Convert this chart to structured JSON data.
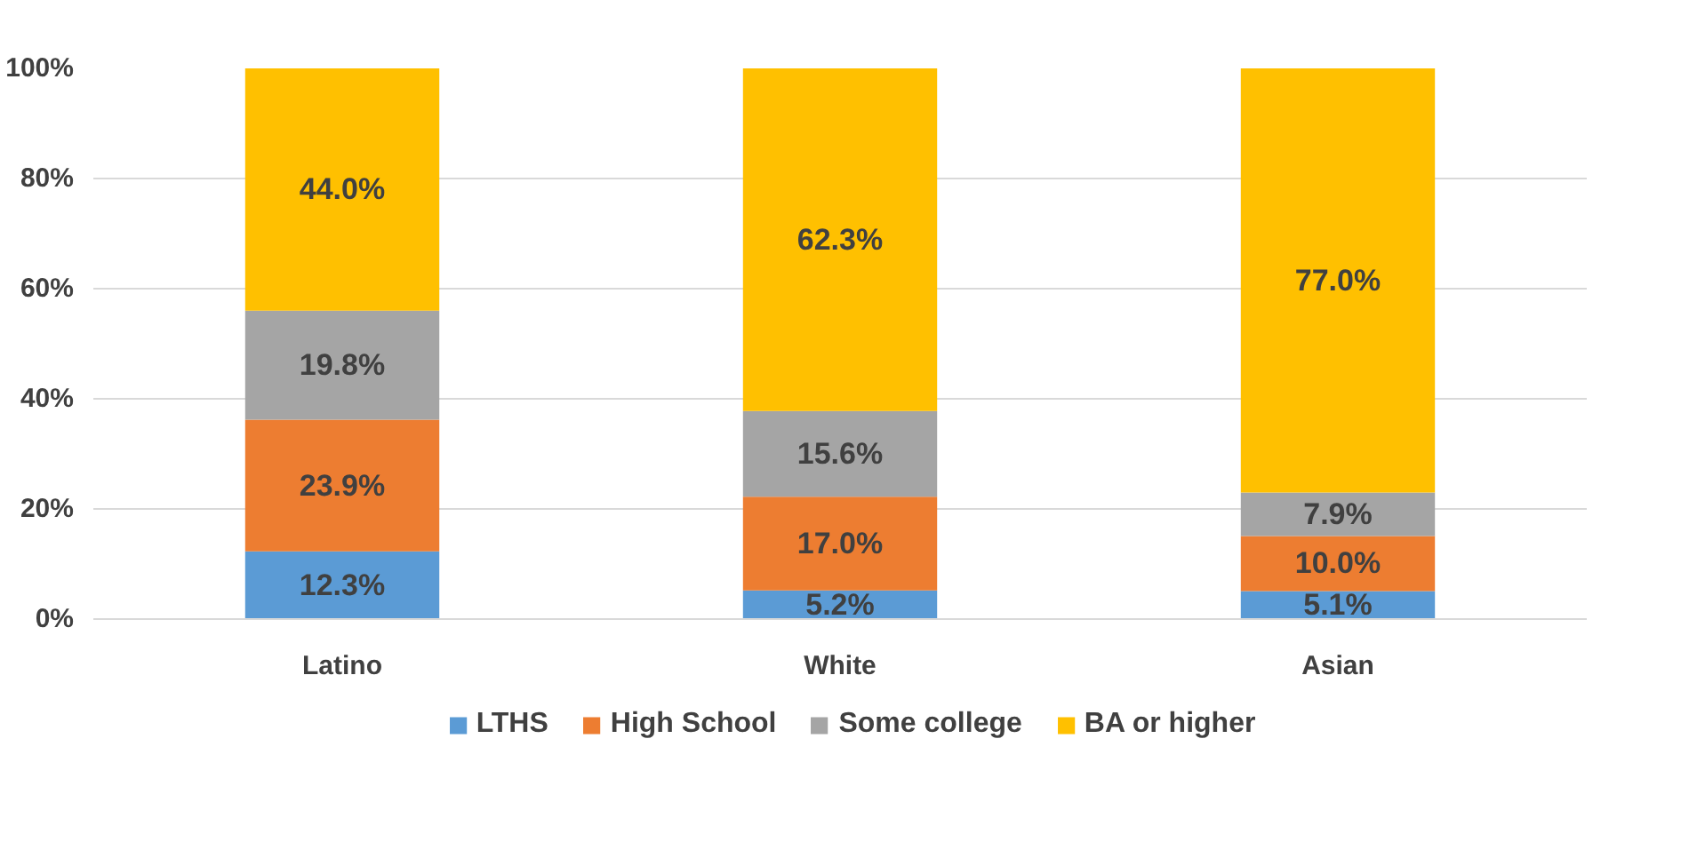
{
  "chart_data": {
    "type": "bar",
    "stacked": true,
    "categories": [
      "Latino",
      "White",
      "Asian"
    ],
    "series": [
      {
        "name": "LTHS",
        "color": "#5b9bd5",
        "values": [
          12.3,
          5.2,
          5.1
        ],
        "value_labels": [
          "12.3%",
          "5.2%",
          "5.1%"
        ]
      },
      {
        "name": "High School",
        "color": "#ed7d31",
        "values": [
          23.9,
          17.0,
          10.0
        ],
        "value_labels": [
          "23.9%",
          "17.0%",
          "10.0%"
        ]
      },
      {
        "name": "Some college",
        "color": "#a5a5a5",
        "values": [
          19.8,
          15.6,
          7.9
        ],
        "value_labels": [
          "19.8%",
          "15.6%",
          "7.9%"
        ]
      },
      {
        "name": "BA or higher",
        "color": "#ffc000",
        "values": [
          44.0,
          62.3,
          77.0
        ],
        "value_labels": [
          "44.0%",
          "62.3%",
          "77.0%"
        ]
      }
    ],
    "ylim": [
      0,
      100
    ],
    "yticks": [
      {
        "value": 0,
        "label": "0%"
      },
      {
        "value": 20,
        "label": "20%"
      },
      {
        "value": 40,
        "label": "40%"
      },
      {
        "value": 60,
        "label": "60%"
      },
      {
        "value": 80,
        "label": "80%"
      },
      {
        "value": 100,
        "label": "100%"
      }
    ],
    "grid": "y",
    "legend": "bottom"
  }
}
